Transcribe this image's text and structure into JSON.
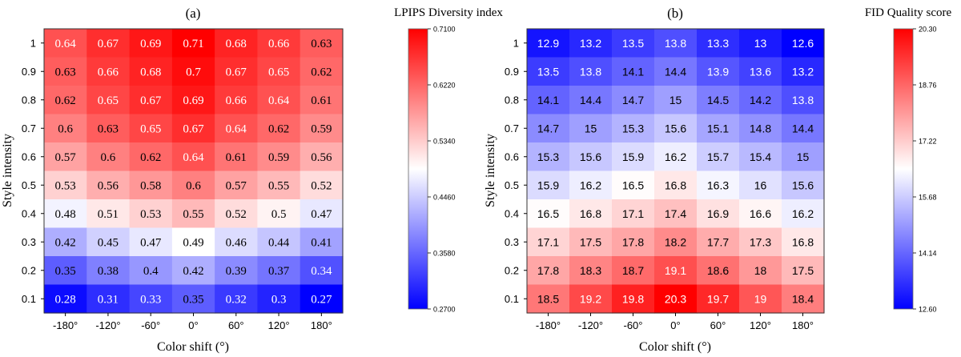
{
  "chart_data": [
    {
      "type": "heatmap",
      "panel_label": "(a)",
      "colorbar_title": "LPIPS Diversity index",
      "xlabel": "Color shift (°)",
      "ylabel": "Style intensity",
      "x_categories": [
        "-180°",
        "-120°",
        "-60°",
        "0°",
        "60°",
        "120°",
        "180°"
      ],
      "y_categories": [
        "1",
        "0.9",
        "0.8",
        "0.7",
        "0.6",
        "0.5",
        "0.4",
        "0.3",
        "0.2",
        "0.1"
      ],
      "values": [
        [
          0.64,
          0.67,
          0.69,
          0.71,
          0.68,
          0.66,
          0.63
        ],
        [
          0.63,
          0.66,
          0.68,
          0.7,
          0.67,
          0.65,
          0.62
        ],
        [
          0.62,
          0.65,
          0.67,
          0.69,
          0.66,
          0.64,
          0.61
        ],
        [
          0.6,
          0.63,
          0.65,
          0.67,
          0.64,
          0.62,
          0.59
        ],
        [
          0.57,
          0.6,
          0.62,
          0.64,
          0.61,
          0.59,
          0.56
        ],
        [
          0.53,
          0.56,
          0.58,
          0.6,
          0.57,
          0.55,
          0.52
        ],
        [
          0.48,
          0.51,
          0.53,
          0.55,
          0.52,
          0.5,
          0.47
        ],
        [
          0.42,
          0.45,
          0.47,
          0.49,
          0.46,
          0.44,
          0.41
        ],
        [
          0.35,
          0.38,
          0.4,
          0.42,
          0.39,
          0.37,
          0.34
        ],
        [
          0.28,
          0.31,
          0.33,
          0.35,
          0.32,
          0.3,
          0.27
        ]
      ],
      "color_range": [
        0.27,
        0.71
      ],
      "colorbar_ticks": [
        "0.7100",
        "0.6220",
        "0.5340",
        "0.4460",
        "0.3580",
        "0.2700"
      ]
    },
    {
      "type": "heatmap",
      "panel_label": "(b)",
      "colorbar_title": "FID Quality score",
      "xlabel": "Color shift (°)",
      "ylabel": "Style intensity",
      "x_categories": [
        "-180°",
        "-120°",
        "-60°",
        "0°",
        "60°",
        "120°",
        "180°"
      ],
      "y_categories": [
        "1",
        "0.9",
        "0.8",
        "0.7",
        "0.6",
        "0.5",
        "0.4",
        "0.3",
        "0.2",
        "0.1"
      ],
      "values": [
        [
          12.9,
          13.2,
          13.5,
          13.8,
          13.3,
          13,
          12.6
        ],
        [
          13.5,
          13.8,
          14.1,
          14.4,
          13.9,
          13.6,
          13.2
        ],
        [
          14.1,
          14.4,
          14.7,
          15,
          14.5,
          14.2,
          13.8
        ],
        [
          14.7,
          15,
          15.3,
          15.6,
          15.1,
          14.8,
          14.4
        ],
        [
          15.3,
          15.6,
          15.9,
          16.2,
          15.7,
          15.4,
          15
        ],
        [
          15.9,
          16.2,
          16.5,
          16.8,
          16.3,
          16,
          15.6
        ],
        [
          16.5,
          16.8,
          17.1,
          17.4,
          16.9,
          16.6,
          16.2
        ],
        [
          17.1,
          17.5,
          17.8,
          18.2,
          17.7,
          17.3,
          16.8
        ],
        [
          17.8,
          18.3,
          18.7,
          19.1,
          18.6,
          18,
          17.5
        ],
        [
          18.5,
          19.2,
          19.8,
          20.3,
          19.7,
          19,
          18.4
        ]
      ],
      "color_range": [
        12.6,
        20.3
      ],
      "colorbar_ticks": [
        "20.30",
        "18.76",
        "17.22",
        "15.68",
        "14.14",
        "12.60"
      ]
    }
  ]
}
